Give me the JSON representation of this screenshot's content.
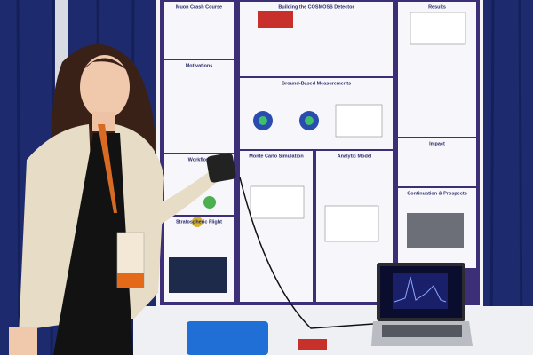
{
  "poster": {
    "sections": [
      {
        "title": "Muon Crash Course"
      },
      {
        "title": "Motivations"
      },
      {
        "title": "Workflow"
      },
      {
        "title": "Stratospheric Flight"
      },
      {
        "title": "Building the COSMOSS Detector"
      },
      {
        "title": "Ground-Based Measurements"
      },
      {
        "title": "Monte Carlo Simulation"
      },
      {
        "title": "Analytic Model"
      },
      {
        "title": "Results"
      },
      {
        "title": "Impact"
      },
      {
        "title": "Continuation & Prospects"
      }
    ]
  }
}
